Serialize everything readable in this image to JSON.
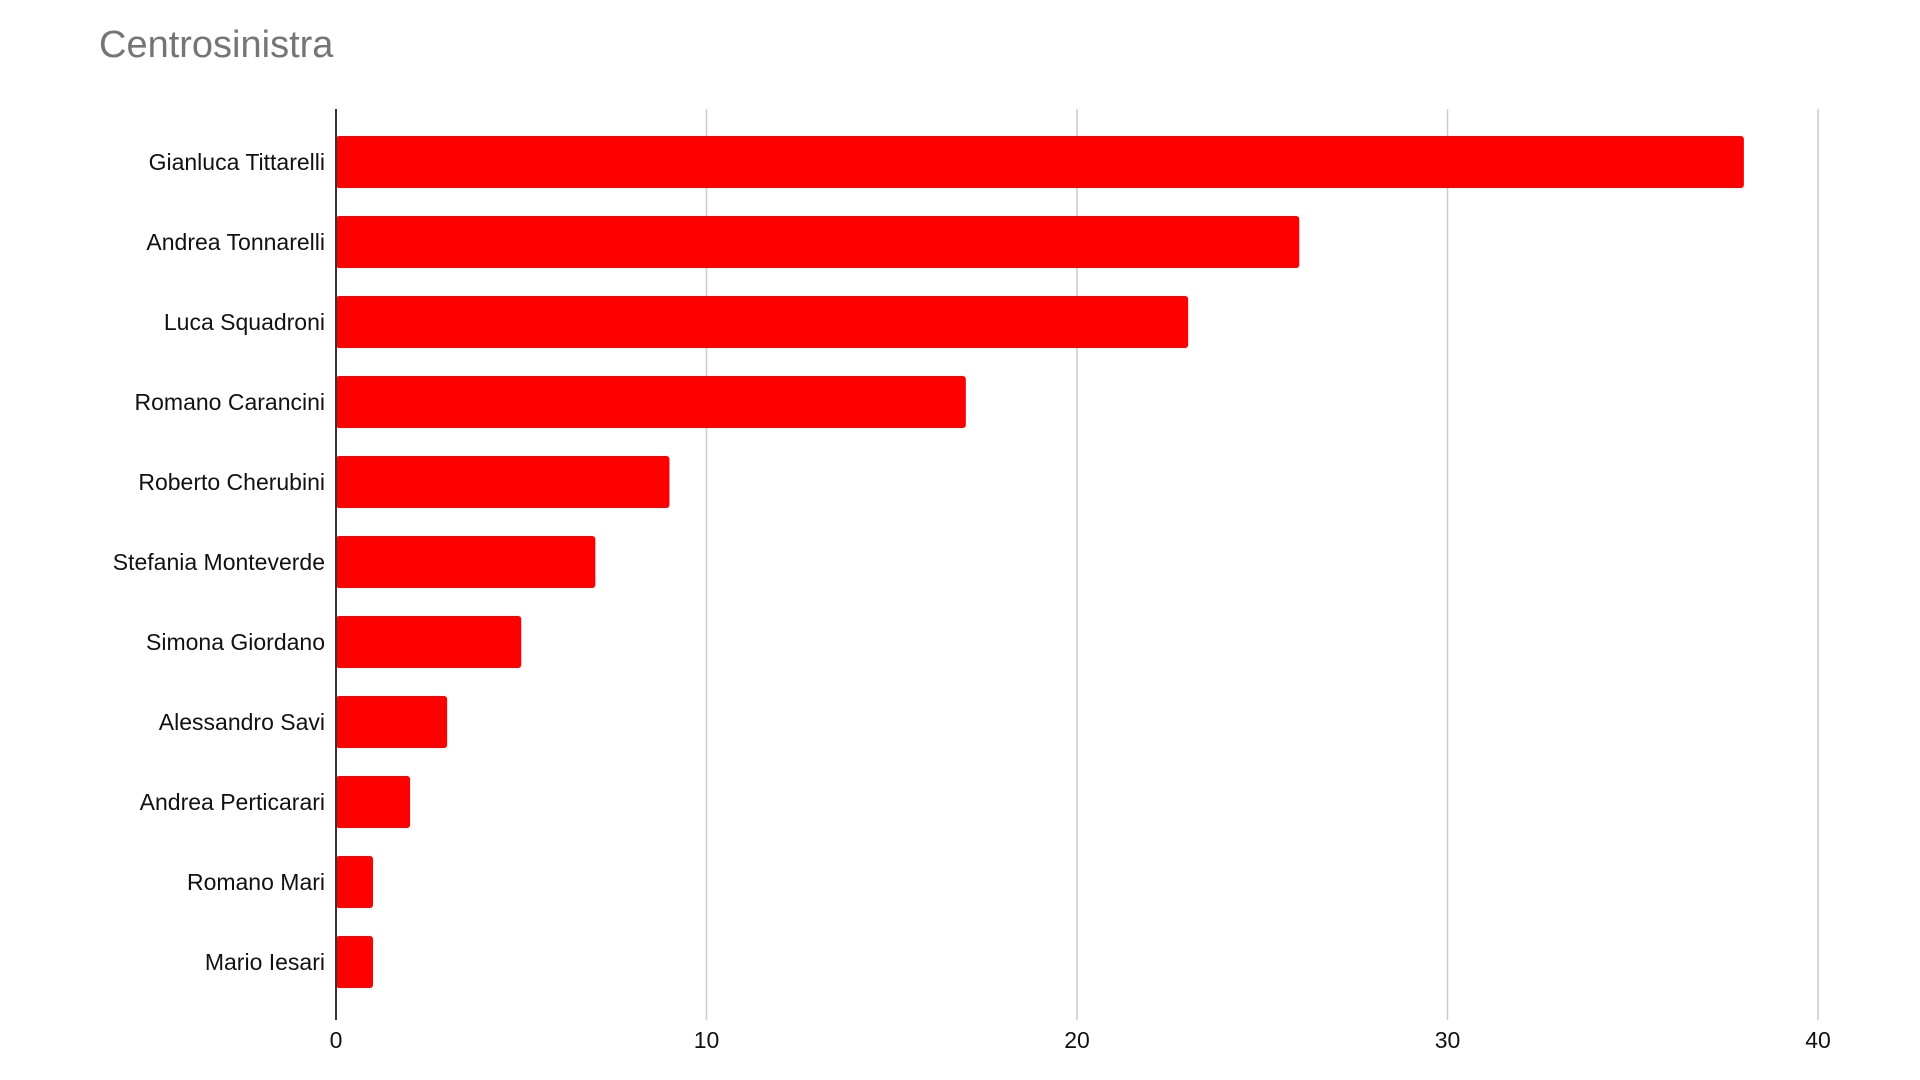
{
  "colors": {
    "bar": "#ff0000",
    "title": "#757575",
    "gridline": "#cccccc",
    "axis": "#333333",
    "text": "#111111"
  },
  "chart_data": {
    "type": "bar",
    "orientation": "horizontal",
    "title": "Centrosinistra",
    "xlabel": "",
    "ylabel": "",
    "categories": [
      "Gianluca Tittarelli",
      "Andrea Tonnarelli",
      "Luca Squadroni",
      "Romano Carancini",
      "Roberto Cherubini",
      "Stefania Monteverde",
      "Simona Giordano",
      "Alessandro Savi",
      "Andrea Perticarari",
      "Romano Mari",
      "Mario Iesari"
    ],
    "values": [
      38,
      26,
      23,
      17,
      9,
      7,
      5,
      3,
      2,
      1,
      1
    ],
    "xlim": [
      0,
      40
    ],
    "ticks": [
      0,
      10,
      20,
      30,
      40
    ],
    "tick_labels": [
      "0",
      "10",
      "20",
      "30",
      "40"
    ],
    "grid": true,
    "legend": "none"
  }
}
